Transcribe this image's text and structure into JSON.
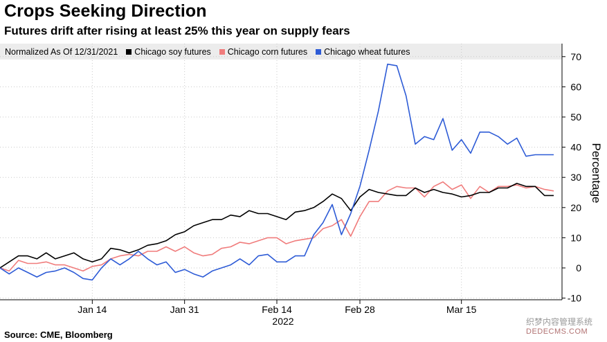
{
  "title": "Crops Seeking Direction",
  "subtitle": "Futures drift after rising at least 25% this year on supply fears",
  "legend_note": "Normalized As Of 12/31/2021",
  "source": "Source: CME, Bloomberg",
  "watermark": "织梦内容管理系统",
  "watermark_url": "DEDECMS.COM",
  "chart_data": {
    "type": "line",
    "title": "Crops Seeking Direction",
    "subtitle": "Futures drift after rising at least 25% this year on supply fears",
    "ylabel": "Percentage",
    "xlabel": "2022",
    "ylim": [
      -10,
      75
    ],
    "yticks": [
      -10,
      0,
      10,
      20,
      30,
      40,
      50,
      60,
      70
    ],
    "x_tick_labels": [
      "Jan 14",
      "Jan 31",
      "Feb 14",
      "Feb 28",
      "Mar 15"
    ],
    "year_label": "2022",
    "legend_position": "top",
    "grid": true,
    "x": [
      "2021-12-31",
      "2022-01-03",
      "2022-01-04",
      "2022-01-05",
      "2022-01-06",
      "2022-01-07",
      "2022-01-10",
      "2022-01-11",
      "2022-01-12",
      "2022-01-13",
      "2022-01-14",
      "2022-01-18",
      "2022-01-19",
      "2022-01-20",
      "2022-01-21",
      "2022-01-24",
      "2022-01-25",
      "2022-01-26",
      "2022-01-27",
      "2022-01-28",
      "2022-01-31",
      "2022-02-01",
      "2022-02-02",
      "2022-02-03",
      "2022-02-04",
      "2022-02-07",
      "2022-02-08",
      "2022-02-09",
      "2022-02-10",
      "2022-02-11",
      "2022-02-14",
      "2022-02-15",
      "2022-02-16",
      "2022-02-17",
      "2022-02-18",
      "2022-02-22",
      "2022-02-23",
      "2022-02-24",
      "2022-02-25",
      "2022-02-28",
      "2022-03-01",
      "2022-03-02",
      "2022-03-03",
      "2022-03-04",
      "2022-03-07",
      "2022-03-08",
      "2022-03-09",
      "2022-03-10",
      "2022-03-11",
      "2022-03-14",
      "2022-03-15",
      "2022-03-16",
      "2022-03-17",
      "2022-03-18",
      "2022-03-21",
      "2022-03-22",
      "2022-03-23",
      "2022-03-24",
      "2022-03-25",
      "2022-03-28",
      "2022-03-29"
    ],
    "series": [
      {
        "name": "Chicago soy futures",
        "color": "#000000",
        "values": [
          0,
          2,
          4,
          4,
          3,
          5,
          3,
          4,
          5,
          3,
          2,
          3,
          6.5,
          6,
          5,
          6,
          7.5,
          8,
          9,
          11,
          12,
          14,
          15,
          16,
          16,
          17.5,
          17,
          19,
          18,
          18,
          17,
          16,
          18.5,
          19,
          20,
          22,
          24.5,
          23,
          19,
          23.5,
          26,
          25,
          24.5,
          24,
          24,
          26.5,
          25,
          26,
          25,
          24.5,
          23.5,
          24,
          25,
          25,
          26.5,
          26.5,
          28,
          27,
          27,
          24,
          24
        ]
      },
      {
        "name": "Chicago corn futures",
        "color": "#f07c7c",
        "values": [
          0,
          -1,
          2.5,
          1.5,
          1.5,
          2,
          1,
          1,
          0,
          -1,
          0.5,
          1,
          3,
          4,
          4.5,
          4,
          5.5,
          5.5,
          7,
          5.5,
          7,
          5,
          4,
          4.5,
          6.5,
          7,
          8.5,
          8,
          9,
          10,
          10,
          8,
          9,
          9.5,
          10,
          13,
          14,
          16,
          10.5,
          17,
          22,
          22,
          25.5,
          27,
          26.5,
          26.5,
          23.5,
          27,
          28.5,
          26,
          27.5,
          23,
          27,
          25,
          27,
          27,
          27.5,
          26.5,
          27,
          26,
          25.5
        ]
      },
      {
        "name": "Chicago wheat futures",
        "color": "#2d5bd6",
        "values": [
          0,
          -2,
          0,
          -1.5,
          -3,
          -1.5,
          -1,
          0,
          -1.5,
          -3.5,
          -4,
          0,
          3,
          1,
          3,
          5.5,
          3,
          1,
          2,
          -1.5,
          -0.5,
          -2,
          -3,
          -1,
          0,
          1,
          3,
          1,
          4,
          4.5,
          2,
          2,
          4,
          4,
          11,
          15,
          21,
          11,
          18,
          27,
          39,
          52,
          67.5,
          67,
          57,
          41,
          43.5,
          42.5,
          49.5,
          39,
          42.5,
          38,
          45,
          45,
          43.5,
          41,
          43,
          37,
          37.5,
          37.5,
          37.5
        ]
      }
    ]
  }
}
